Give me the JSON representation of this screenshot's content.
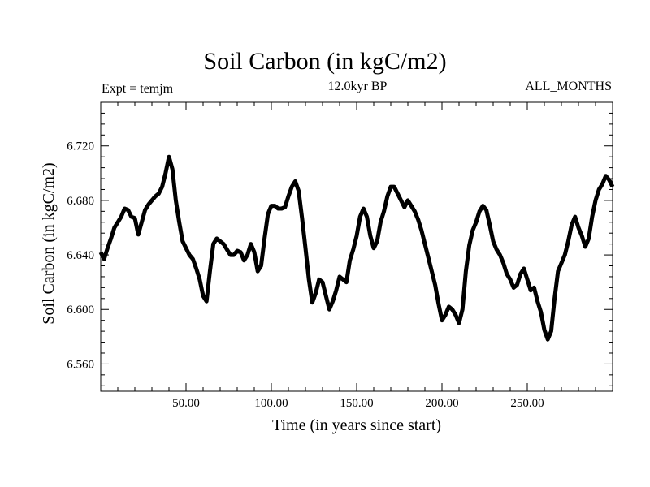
{
  "chart_data": {
    "type": "line",
    "title": "Soil Carbon (in kgC/m2)",
    "subtitle_left": "Expt = temjm",
    "subtitle_center": "12.0kyr BP",
    "subtitle_right": "ALL_MONTHS",
    "xlabel": "Time (in years since start)",
    "ylabel": "Soil Carbon (in kgC/m2)",
    "xlim": [
      0,
      300
    ],
    "ylim": [
      6.54,
      6.752
    ],
    "x_ticks": [
      {
        "value": 50,
        "label": "50.00"
      },
      {
        "value": 100,
        "label": "100.00"
      },
      {
        "value": 150,
        "label": "150.00"
      },
      {
        "value": 200,
        "label": "200.00"
      },
      {
        "value": 250,
        "label": "250.00"
      }
    ],
    "y_ticks": [
      {
        "value": 6.56,
        "label": "6.560"
      },
      {
        "value": 6.6,
        "label": "6.600"
      },
      {
        "value": 6.64,
        "label": "6.640"
      },
      {
        "value": 6.68,
        "label": "6.680"
      },
      {
        "value": 6.72,
        "label": "6.720"
      }
    ],
    "grid": false,
    "line_color": "#000000",
    "series": [
      {
        "x": [
          0,
          2,
          4,
          6,
          8,
          10,
          12,
          14,
          16,
          18,
          20,
          22,
          24,
          26,
          28,
          30,
          32,
          34,
          36,
          38,
          40,
          42,
          44,
          46,
          48,
          50,
          52,
          54,
          56,
          58,
          60,
          62,
          64,
          66,
          68,
          70,
          72,
          74,
          76,
          78,
          80,
          82,
          84,
          86,
          88,
          90,
          92,
          94,
          96,
          98,
          100,
          102,
          104,
          106,
          108,
          110,
          112,
          114,
          116,
          118,
          120,
          122,
          124,
          126,
          128,
          130,
          132,
          134,
          136,
          138,
          140,
          142,
          144,
          146,
          148,
          150,
          152,
          154,
          156,
          158,
          160,
          162,
          164,
          166,
          168,
          170,
          172,
          174,
          176,
          178,
          180,
          182,
          184,
          186,
          188,
          190,
          192,
          194,
          196,
          198,
          200,
          202,
          204,
          206,
          208,
          210,
          212,
          214,
          216,
          218,
          220,
          222,
          224,
          226,
          228,
          230,
          232,
          234,
          236,
          238,
          240,
          242,
          244,
          246,
          248,
          250,
          252,
          254,
          256,
          258,
          260,
          262,
          264,
          266,
          268,
          270,
          272,
          274,
          276,
          278,
          280,
          282,
          284,
          286,
          288,
          290,
          292,
          294,
          296,
          298,
          300
        ],
        "y": [
          6.642,
          6.637,
          6.645,
          6.652,
          6.66,
          6.664,
          6.668,
          6.674,
          6.673,
          6.668,
          6.667,
          6.655,
          6.664,
          6.673,
          6.677,
          6.68,
          6.683,
          6.685,
          6.69,
          6.7,
          6.712,
          6.703,
          6.68,
          6.664,
          6.65,
          6.645,
          6.64,
          6.637,
          6.63,
          6.622,
          6.61,
          6.606,
          6.628,
          6.648,
          6.652,
          6.65,
          6.648,
          6.644,
          6.64,
          6.64,
          6.643,
          6.642,
          6.636,
          6.64,
          6.648,
          6.642,
          6.628,
          6.632,
          6.652,
          6.67,
          6.676,
          6.676,
          6.674,
          6.674,
          6.675,
          6.683,
          6.69,
          6.694,
          6.687,
          6.667,
          6.645,
          6.622,
          6.605,
          6.612,
          6.622,
          6.62,
          6.61,
          6.6,
          6.606,
          6.614,
          6.624,
          6.622,
          6.62,
          6.636,
          6.644,
          6.654,
          6.668,
          6.674,
          6.668,
          6.654,
          6.645,
          6.65,
          6.664,
          6.672,
          6.683,
          6.69,
          6.69,
          6.685,
          6.68,
          6.675,
          6.68,
          6.676,
          6.672,
          6.666,
          6.658,
          6.648,
          6.638,
          6.628,
          6.618,
          6.604,
          6.592,
          6.596,
          6.602,
          6.6,
          6.596,
          6.59,
          6.6,
          6.628,
          6.647,
          6.658,
          6.664,
          6.672,
          6.676,
          6.673,
          6.662,
          6.65,
          6.644,
          6.64,
          6.634,
          6.626,
          6.622,
          6.616,
          6.618,
          6.626,
          6.63,
          6.622,
          6.614,
          6.616,
          6.606,
          6.598,
          6.585,
          6.578,
          6.584,
          6.608,
          6.628,
          6.634,
          6.64,
          6.65,
          6.662,
          6.668,
          6.66,
          6.654,
          6.646,
          6.652,
          6.668,
          6.68,
          6.688,
          6.692,
          6.698,
          6.695,
          6.69
        ]
      }
    ]
  }
}
